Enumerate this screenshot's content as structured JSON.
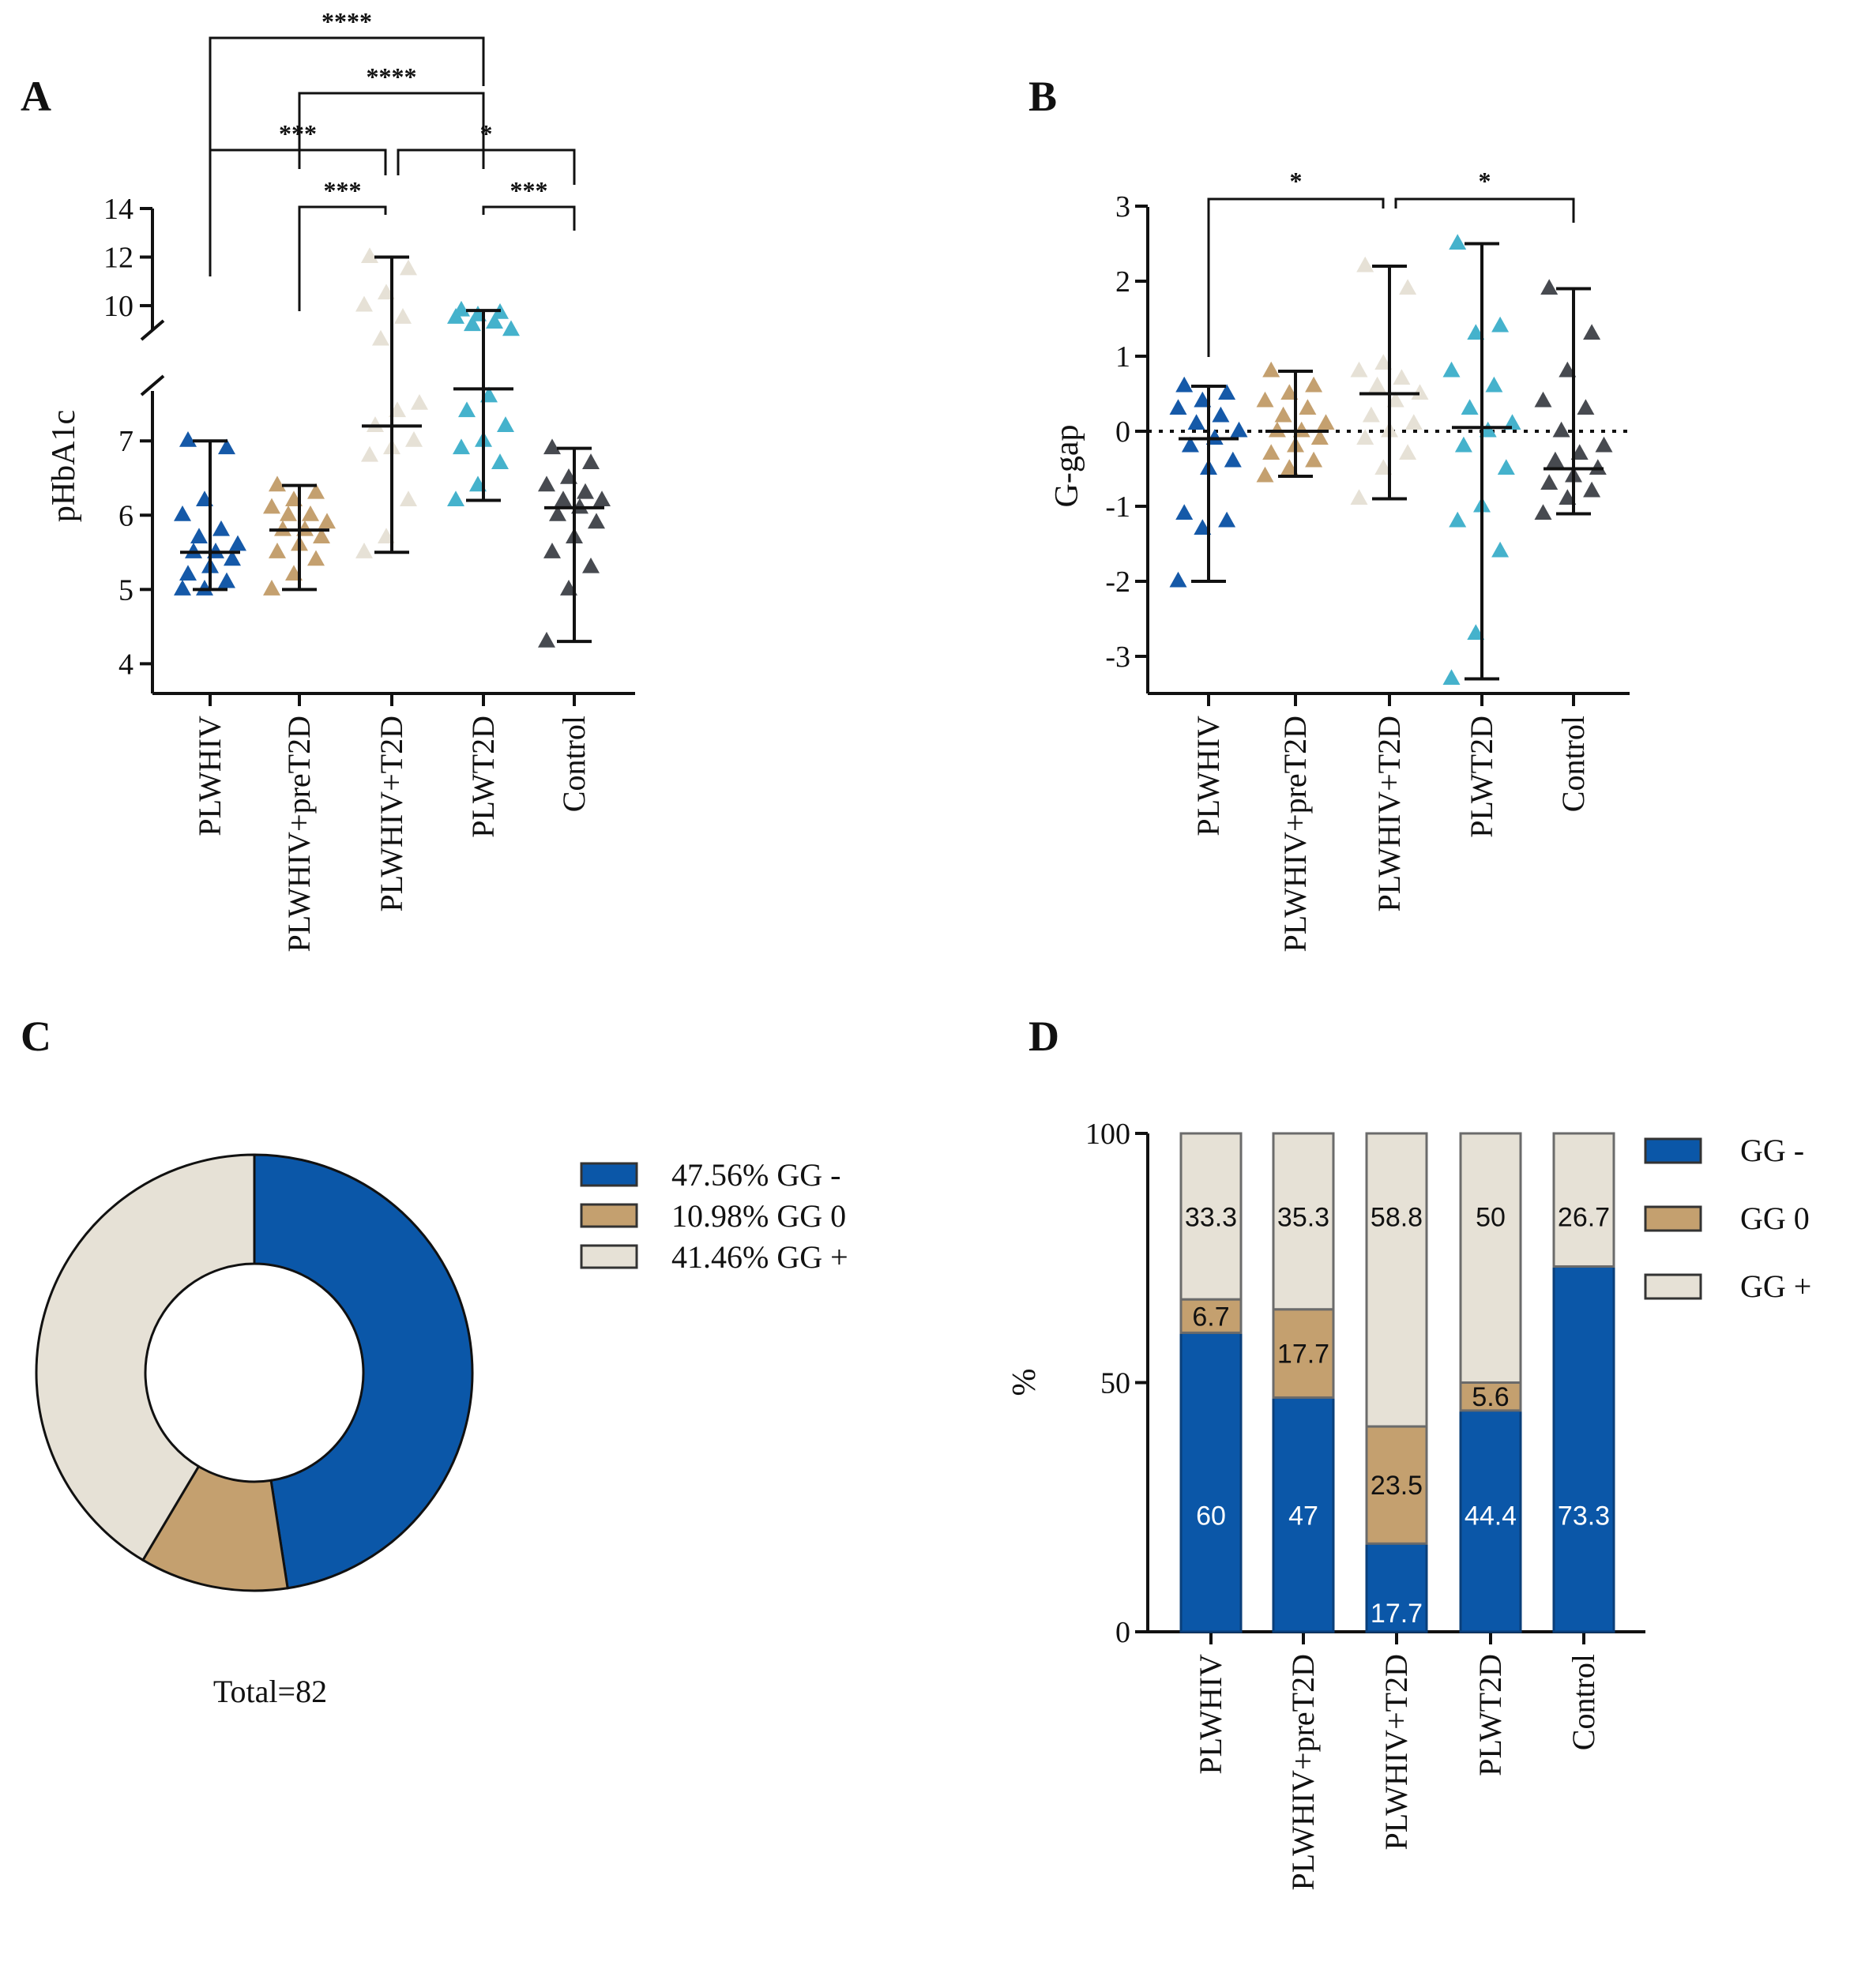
{
  "colors": {
    "PLWHIV": "#1559a8",
    "PLWHIV+preT2D": "#c4a06f",
    "PLWHIV+T2D": "#e6e1d6",
    "PLWT2D": "#45b2cc",
    "Control": "#474a50",
    "GG -": "#0b57a8",
    "GG 0": "#c4a06f",
    "GG +": "#e6e1d6"
  },
  "chart_data": [
    {
      "id": "A",
      "type": "scatter",
      "panel_label": "A",
      "ylabel": "pHbA1c",
      "categories": [
        "PLWHIV",
        "PLWHIV+preT2D",
        "PLWHIV+T2D",
        "PLWT2D",
        "Control"
      ],
      "y_axis_lower": {
        "range": [
          3.6,
          7.8
        ],
        "ticks": [
          "4",
          "5",
          "6",
          "7"
        ]
      },
      "y_axis_upper": {
        "range": [
          8.6,
          14
        ],
        "ticks": [
          "10",
          "12",
          "14"
        ]
      },
      "axis_break": true,
      "summary": [
        {
          "mean": 5.5,
          "min": 5.0,
          "max": 7.0
        },
        {
          "mean": 5.8,
          "min": 5.0,
          "max": 6.4
        },
        {
          "mean": 7.2,
          "min": 5.5,
          "max": 12.0
        },
        {
          "mean": 7.7,
          "min": 6.2,
          "max": 9.8
        },
        {
          "mean": 6.1,
          "min": 4.3,
          "max": 6.9
        }
      ],
      "points": [
        [
          5.0,
          5.0,
          5.1,
          5.2,
          5.3,
          5.4,
          5.5,
          5.5,
          5.6,
          5.7,
          5.8,
          6.0,
          6.2,
          6.9,
          7.0
        ],
        [
          5.0,
          5.2,
          5.4,
          5.5,
          5.6,
          5.7,
          5.8,
          5.8,
          5.9,
          6.0,
          6.0,
          6.1,
          6.2,
          6.3,
          6.4
        ],
        [
          5.5,
          5.7,
          6.2,
          6.8,
          6.9,
          7.0,
          7.2,
          7.4,
          7.5,
          7.9,
          9.5,
          10.0,
          10.5,
          11.5,
          12.0
        ],
        [
          6.2,
          6.4,
          6.7,
          6.9,
          7.0,
          7.2,
          7.4,
          7.6,
          9.0,
          9.2,
          9.3,
          9.5,
          9.6,
          9.7,
          9.8
        ],
        [
          4.3,
          5.0,
          5.3,
          5.5,
          5.7,
          5.9,
          6.0,
          6.1,
          6.2,
          6.2,
          6.3,
          6.4,
          6.5,
          6.7,
          6.9
        ]
      ],
      "brackets": [
        {
          "from": 0,
          "to": 3,
          "label": "****"
        },
        {
          "from": 1,
          "to": 3,
          "label": "****"
        },
        {
          "from": 0,
          "to": 2,
          "label": "***"
        },
        {
          "from": 2,
          "to": 4,
          "label": "*"
        },
        {
          "from": 1,
          "to": 2,
          "label": "***"
        },
        {
          "from": 3,
          "to": 4,
          "label": "***"
        }
      ]
    },
    {
      "id": "B",
      "type": "scatter",
      "panel_label": "B",
      "ylabel": "G-gap",
      "categories": [
        "PLWHIV",
        "PLWHIV+preT2D",
        "PLWHIV+T2D",
        "PLWT2D",
        "Control"
      ],
      "ylim": [
        -3.5,
        3
      ],
      "yticks": [
        "3",
        "2",
        "1",
        "0",
        "-1",
        "-2",
        "-3"
      ],
      "reference_line": 0,
      "summary": [
        {
          "mean": -0.1,
          "min": -2.0,
          "max": 0.6
        },
        {
          "mean": 0.0,
          "min": -0.6,
          "max": 0.8
        },
        {
          "mean": 0.5,
          "min": -0.9,
          "max": 2.2
        },
        {
          "mean": 0.05,
          "min": -3.3,
          "max": 2.5
        },
        {
          "mean": -0.5,
          "min": -1.1,
          "max": 1.9
        }
      ],
      "points": [
        [
          -2.0,
          -1.3,
          -1.2,
          -1.1,
          -0.5,
          -0.4,
          -0.2,
          -0.1,
          0.0,
          0.1,
          0.2,
          0.3,
          0.4,
          0.5,
          0.6
        ],
        [
          -0.6,
          -0.5,
          -0.4,
          -0.3,
          -0.2,
          -0.1,
          0.0,
          0.0,
          0.1,
          0.2,
          0.3,
          0.4,
          0.5,
          0.6,
          0.8
        ],
        [
          -0.9,
          -0.5,
          -0.3,
          -0.1,
          0.0,
          0.1,
          0.2,
          0.4,
          0.5,
          0.6,
          0.7,
          0.8,
          0.9,
          1.9,
          2.2
        ],
        [
          -3.3,
          -2.7,
          -1.6,
          -1.2,
          -1.0,
          -0.5,
          -0.2,
          0.0,
          0.1,
          0.3,
          0.6,
          0.8,
          1.3,
          1.4,
          2.5
        ],
        [
          -1.1,
          -0.9,
          -0.8,
          -0.7,
          -0.6,
          -0.5,
          -0.4,
          -0.3,
          -0.2,
          0.0,
          0.3,
          0.4,
          0.8,
          1.3,
          1.9
        ]
      ],
      "brackets": [
        {
          "from": 0,
          "to": 2,
          "label": "*"
        },
        {
          "from": 2,
          "to": 4,
          "label": "*"
        }
      ]
    },
    {
      "id": "C",
      "type": "pie",
      "panel_label": "C",
      "donut": true,
      "slices": [
        {
          "label": "GG -",
          "value": 47.56,
          "legend_text": "47.56%  GG -"
        },
        {
          "label": "GG 0",
          "value": 10.98,
          "legend_text": "10.98%  GG 0"
        },
        {
          "label": "GG +",
          "value": 41.46,
          "legend_text": "41.46%  GG +"
        }
      ],
      "total_text": "Total=82"
    },
    {
      "id": "D",
      "type": "bar",
      "stacked": true,
      "panel_label": "D",
      "ylabel": "%",
      "ylim": [
        0,
        100
      ],
      "yticks": [
        "0",
        "50",
        "100"
      ],
      "categories": [
        "PLWHIV",
        "PLWHIV+preT2D",
        "PLWHIV+T2D",
        "PLWT2D",
        "Control"
      ],
      "series": [
        {
          "name": "GG -",
          "values": [
            60,
            47,
            17.7,
            44.4,
            73.3
          ],
          "labels": [
            "60",
            "47",
            "17.7",
            "44.4",
            "73.3"
          ]
        },
        {
          "name": "GG 0",
          "values": [
            6.7,
            17.7,
            23.5,
            5.6,
            0
          ],
          "labels": [
            "6.7",
            "17.7",
            "23.5",
            "5.6",
            ""
          ]
        },
        {
          "name": "GG +",
          "values": [
            33.3,
            35.3,
            58.8,
            50,
            26.7
          ],
          "labels": [
            "33.3",
            "35.3",
            "58.8",
            "50",
            "26.7"
          ]
        }
      ],
      "legend": [
        "GG -",
        "GG 0",
        "GG +"
      ]
    }
  ]
}
